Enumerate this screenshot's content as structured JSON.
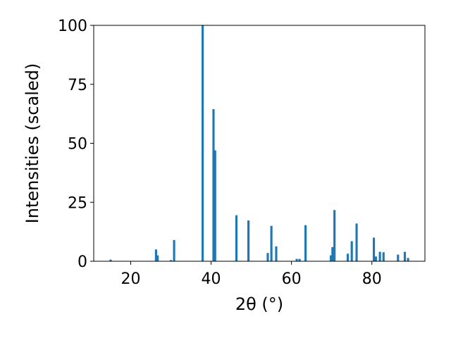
{
  "chart_data": {
    "type": "bar",
    "title": "",
    "xlabel": "2θ (°)",
    "ylabel": "Intensities (scaled)",
    "xlim": [
      10.8,
      93.2
    ],
    "ylim": [
      0,
      100
    ],
    "grid": false,
    "bar_width": 0.55,
    "color": "#1f77b4",
    "x_ticks": [
      20,
      40,
      60,
      80
    ],
    "y_ticks": [
      0,
      25,
      50,
      75,
      100
    ],
    "x": [
      15.0,
      26.3,
      26.7,
      30.0,
      30.8,
      37.9,
      40.6,
      41.0,
      46.3,
      49.3,
      54.1,
      55.0,
      56.2,
      61.3,
      62.0,
      63.5,
      69.8,
      70.2,
      70.7,
      74.0,
      75.0,
      76.2,
      80.5,
      81.0,
      82.0,
      82.9,
      86.5,
      88.2,
      89.0
    ],
    "values": [
      0.7,
      5.0,
      2.5,
      0.5,
      9.0,
      100.0,
      64.5,
      47.0,
      19.5,
      17.3,
      3.5,
      15.0,
      6.3,
      1.0,
      1.0,
      15.3,
      2.5,
      6.0,
      21.7,
      3.2,
      8.5,
      16.0,
      10.0,
      2.0,
      4.0,
      3.8,
      2.8,
      4.0,
      1.4
    ]
  }
}
